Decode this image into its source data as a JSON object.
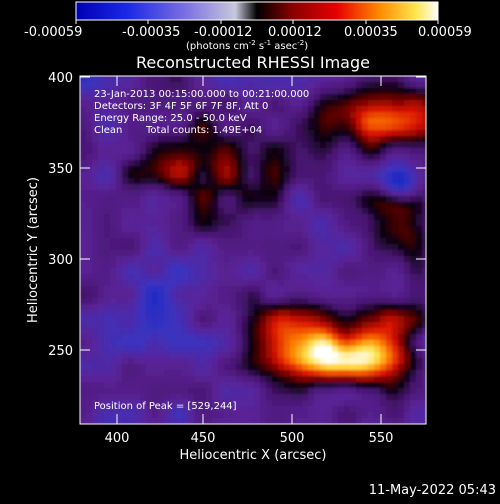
{
  "colorbar": {
    "tick_labels": [
      "-0.00059",
      "-0.00035",
      "-0.00012",
      "0.00012",
      "0.00035",
      "0.00059"
    ],
    "unit_prefix": "(photons cm",
    "unit_exp1": "-2",
    "unit_mid1": " s",
    "unit_exp2": "-1",
    "unit_mid2": " asec",
    "unit_exp3": "-2",
    "unit_suffix": ")"
  },
  "plot": {
    "title": "Reconstructed RHESSI Image",
    "xlabel": "Heliocentric X (arcsec)",
    "ylabel": "Heliocentric Y (arcsec)",
    "x_ticks": [
      "400",
      "450",
      "500",
      "550"
    ],
    "y_ticks": [
      "400",
      "350",
      "300",
      "250"
    ],
    "x_range": [
      380,
      570
    ],
    "y_range": [
      210,
      402
    ]
  },
  "info": {
    "line1": "23-Jan-2013 00:15:00.000 to 00:21:00.000",
    "line2": "Detectors: 3F 4F 5F 6F 7F 8F, Att 0",
    "line3": "Energy Range: 25.0 - 50.0 keV",
    "line4_method": "Clean",
    "line4_counts": "Total counts: 1.49E+04",
    "peak": "Position of Peak = [529,244]"
  },
  "timestamp": "11-May-2022 05:43",
  "colors": {
    "background": "#000000",
    "text": "#ffffff"
  }
}
